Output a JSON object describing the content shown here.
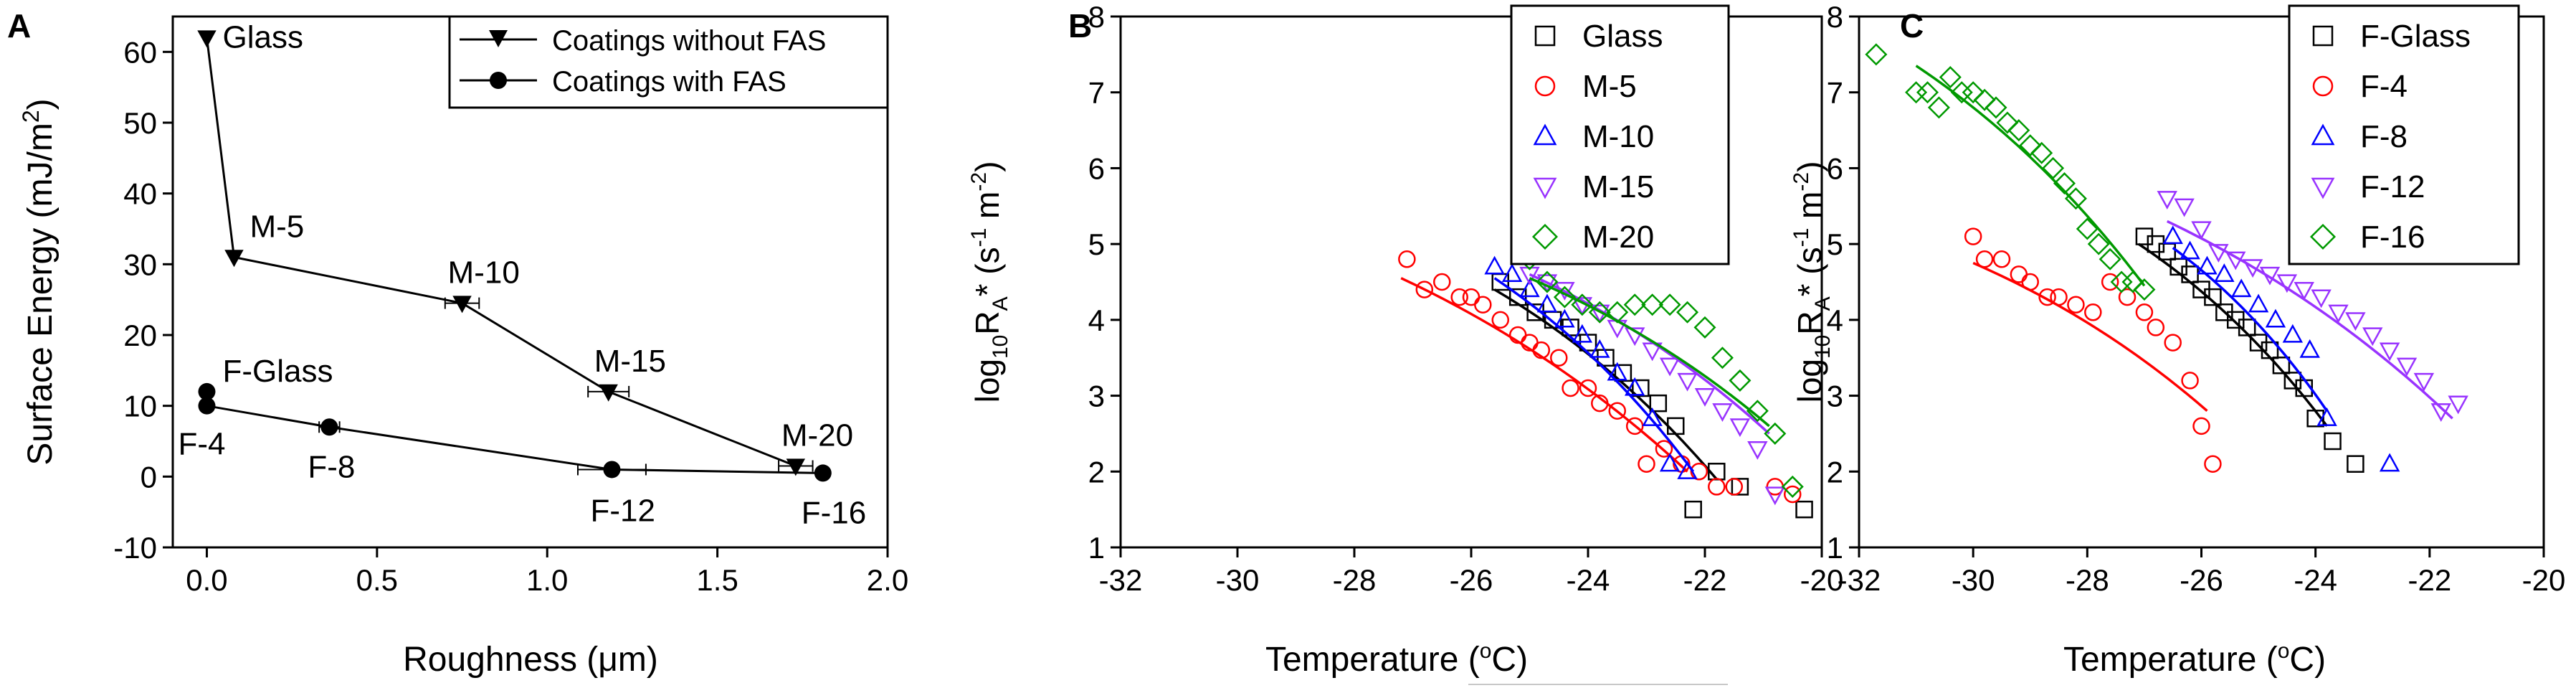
{
  "figure": {
    "panels": [
      {
        "label": "A"
      },
      {
        "label": "B"
      },
      {
        "label": "C"
      }
    ]
  },
  "chart_data": [
    {
      "panel": "A",
      "type": "line",
      "title": "",
      "xlabel": "Roughness (μm)",
      "ylabel": "Surface Energy (mJ/m²)",
      "xlim": [
        -0.1,
        2.0
      ],
      "ylim": [
        -10,
        65
      ],
      "xticks": [
        0.0,
        0.5,
        1.0,
        1.5,
        2.0
      ],
      "xtick_labels": [
        "0.0",
        "0.5",
        "1.0",
        "1.5",
        "2.0"
      ],
      "yticks": [
        -10,
        0,
        10,
        20,
        30,
        40,
        50,
        60
      ],
      "ytick_labels": [
        "-10",
        "0",
        "10",
        "20",
        "30",
        "40",
        "50",
        "60"
      ],
      "legend_position": "top-right",
      "series": [
        {
          "name": "Coatings without FAS",
          "marker": "triangle-down",
          "color": "#000000",
          "x": [
            0.0,
            0.08,
            0.75,
            1.18,
            1.73
          ],
          "y": [
            62,
            31,
            24.5,
            12,
            1.5
          ],
          "xerr": [
            0.0,
            0.0,
            0.05,
            0.06,
            0.05
          ],
          "labels": [
            "Glass",
            "M-5",
            "M-10",
            "M-15",
            "M-20"
          ]
        },
        {
          "name": "Coatings with FAS",
          "marker": "circle",
          "color": "#000000",
          "x": [
            0.0,
            0.0,
            0.36,
            1.19,
            1.81
          ],
          "y": [
            12,
            10,
            7,
            1,
            0.5
          ],
          "xerr": [
            0.0,
            0.0,
            0.03,
            0.1,
            0.0
          ],
          "labels": [
            "F-Glass",
            "F-4",
            "F-8",
            "F-12",
            "F-16"
          ]
        }
      ]
    },
    {
      "panel": "B",
      "type": "scatter",
      "title": "",
      "xlabel": "Temperature (°C)",
      "ylabel": "log10 RA* (s-1 m-2)",
      "ylabel_main": "log",
      "ylabel_sub1": "10",
      "ylabel_mid": "R",
      "ylabel_sub2": "A",
      "ylabel_tail": "* (s",
      "ylabel_exp1": "-1",
      "ylabel_m": " m",
      "ylabel_exp2": "-2",
      "ylabel_close": ")",
      "xlim": [
        -32,
        -20
      ],
      "ylim": [
        1,
        8
      ],
      "xticks": [
        -32,
        -30,
        -28,
        -26,
        -24,
        -22,
        -20
      ],
      "xtick_labels": [
        "-32",
        "-30",
        "-28",
        "-26",
        "-24",
        "-22",
        "-20"
      ],
      "yticks": [
        1,
        2,
        3,
        4,
        5,
        6,
        7,
        8
      ],
      "ytick_labels": [
        "1",
        "2",
        "3",
        "4",
        "5",
        "6",
        "7",
        "8"
      ],
      "legend_position": "top-right",
      "series": [
        {
          "name": "Glass",
          "marker": "square",
          "color": "#000000",
          "x": [
            -25.5,
            -25.2,
            -24.9,
            -24.6,
            -24.3,
            -24.0,
            -23.7,
            -23.4,
            -23.1,
            -22.8,
            -22.5,
            -22.2,
            -21.8,
            -21.4,
            -20.3
          ],
          "y": [
            4.5,
            4.3,
            4.1,
            4.0,
            3.9,
            3.7,
            3.5,
            3.3,
            3.1,
            2.9,
            2.6,
            1.5,
            2.0,
            1.8,
            1.5
          ],
          "fit_x": [
            -25.6,
            -21.8
          ],
          "fit_y": [
            4.4,
            1.9
          ]
        },
        {
          "name": "M-5",
          "marker": "circle",
          "color": "#ff0000",
          "x": [
            -27.1,
            -26.8,
            -26.5,
            -26.2,
            -26.0,
            -25.8,
            -25.5,
            -25.2,
            -25.0,
            -24.8,
            -24.5,
            -24.3,
            -24.0,
            -23.8,
            -23.5,
            -23.2,
            -23.0,
            -22.7,
            -22.4,
            -22.1,
            -21.8,
            -21.5,
            -20.8,
            -20.5
          ],
          "y": [
            4.8,
            4.4,
            4.5,
            4.3,
            4.3,
            4.2,
            4.0,
            3.8,
            3.7,
            3.6,
            3.5,
            3.1,
            3.1,
            2.9,
            2.8,
            2.6,
            2.1,
            2.3,
            2.1,
            2.0,
            1.8,
            1.8,
            1.8,
            1.7
          ],
          "fit_x": [
            -27.2,
            -22.3
          ],
          "fit_y": [
            4.55,
            2.0
          ]
        },
        {
          "name": "M-10",
          "marker": "triangle-up",
          "color": "#0000ff",
          "x": [
            -25.6,
            -25.3,
            -25.0,
            -24.7,
            -24.4,
            -24.1,
            -23.8,
            -23.5,
            -23.2,
            -22.9,
            -22.6,
            -22.3
          ],
          "y": [
            4.7,
            4.6,
            4.4,
            4.2,
            4.0,
            3.8,
            3.6,
            3.3,
            3.1,
            2.7,
            2.1,
            2.0
          ],
          "fit_x": [
            -25.6,
            -22.2
          ],
          "fit_y": [
            4.55,
            2.0
          ]
        },
        {
          "name": "M-15",
          "marker": "triangle-down",
          "color": "#9933ff",
          "x": [
            -25.0,
            -24.7,
            -24.4,
            -24.1,
            -23.8,
            -23.5,
            -23.2,
            -22.9,
            -22.6,
            -22.3,
            -22.0,
            -21.7,
            -21.4,
            -21.1,
            -20.8
          ],
          "y": [
            4.6,
            4.5,
            4.4,
            4.2,
            4.1,
            3.9,
            3.8,
            3.6,
            3.4,
            3.2,
            3.0,
            2.8,
            2.6,
            2.3,
            1.7
          ],
          "fit_x": [
            -25.0,
            -20.9
          ],
          "fit_y": [
            4.6,
            2.5
          ]
        },
        {
          "name": "M-20",
          "marker": "diamond",
          "color": "#009900",
          "x": [
            -25.0,
            -24.7,
            -24.4,
            -24.1,
            -23.8,
            -23.5,
            -23.2,
            -22.9,
            -22.6,
            -22.3,
            -22.0,
            -21.7,
            -21.4,
            -21.1,
            -20.8,
            -20.5
          ],
          "y": [
            4.8,
            4.5,
            4.3,
            4.2,
            4.1,
            4.1,
            4.2,
            4.2,
            4.2,
            4.1,
            3.9,
            3.5,
            3.2,
            2.8,
            2.5,
            1.8
          ],
          "fit_x": [
            -25.0,
            -20.9
          ],
          "fit_y": [
            4.55,
            2.6
          ]
        }
      ]
    },
    {
      "panel": "C",
      "type": "scatter",
      "title": "",
      "xlabel": "Temperature (°C)",
      "ylabel": "log10 RA* (s-1 m-2)",
      "ylabel_main": "log",
      "ylabel_sub1": "10",
      "ylabel_mid": "R",
      "ylabel_sub2": "A",
      "ylabel_tail": "* (s",
      "ylabel_exp1": "-1",
      "ylabel_m": " m",
      "ylabel_exp2": "-2",
      "ylabel_close": ")",
      "xlim": [
        -32,
        -20
      ],
      "ylim": [
        1,
        8
      ],
      "xticks": [
        -32,
        -30,
        -28,
        -26,
        -24,
        -22,
        -20
      ],
      "xtick_labels": [
        "-32",
        "-30",
        "-28",
        "-26",
        "-24",
        "-22",
        "-20"
      ],
      "yticks": [
        1,
        2,
        3,
        4,
        5,
        6,
        7,
        8
      ],
      "ytick_labels": [
        "1",
        "2",
        "3",
        "4",
        "5",
        "6",
        "7",
        "8"
      ],
      "legend_position": "top-right",
      "series": [
        {
          "name": "F-Glass",
          "marker": "square",
          "color": "#000000",
          "x": [
            -27.0,
            -26.8,
            -26.6,
            -26.4,
            -26.2,
            -26.0,
            -25.8,
            -25.6,
            -25.4,
            -25.2,
            -25.0,
            -24.8,
            -24.6,
            -24.4,
            -24.2,
            -24.0,
            -23.7,
            -23.3
          ],
          "y": [
            5.1,
            5.0,
            4.9,
            4.7,
            4.6,
            4.4,
            4.3,
            4.1,
            4.0,
            3.9,
            3.7,
            3.6,
            3.4,
            3.2,
            3.1,
            2.7,
            2.4,
            2.1
          ],
          "fit_x": [
            -27.1,
            -23.8
          ],
          "fit_y": [
            5.0,
            2.6
          ]
        },
        {
          "name": "F-4",
          "marker": "circle",
          "color": "#ff0000",
          "x": [
            -30.0,
            -29.8,
            -29.5,
            -29.2,
            -29.0,
            -28.7,
            -28.5,
            -28.2,
            -27.9,
            -27.6,
            -27.3,
            -27.0,
            -26.8,
            -26.5,
            -26.2,
            -26.0,
            -25.8
          ],
          "y": [
            5.1,
            4.8,
            4.8,
            4.6,
            4.5,
            4.3,
            4.3,
            4.2,
            4.1,
            4.5,
            4.3,
            4.1,
            3.9,
            3.7,
            3.2,
            2.6,
            2.1
          ],
          "fit_x": [
            -30.0,
            -25.9
          ],
          "fit_y": [
            4.75,
            2.8
          ]
        },
        {
          "name": "F-8",
          "marker": "triangle-up",
          "color": "#0000ff",
          "x": [
            -26.5,
            -26.2,
            -25.9,
            -25.6,
            -25.3,
            -25.0,
            -24.7,
            -24.4,
            -24.1,
            -23.8,
            -22.7
          ],
          "y": [
            5.1,
            4.9,
            4.7,
            4.6,
            4.4,
            4.2,
            4.0,
            3.8,
            3.6,
            2.7,
            2.1
          ],
          "fit_x": [
            -26.5,
            -23.8
          ],
          "fit_y": [
            4.95,
            2.8
          ]
        },
        {
          "name": "F-12",
          "marker": "triangle-down",
          "color": "#9933ff",
          "x": [
            -26.6,
            -26.3,
            -26.0,
            -25.7,
            -25.4,
            -25.1,
            -24.8,
            -24.5,
            -24.2,
            -23.9,
            -23.6,
            -23.3,
            -23.0,
            -22.7,
            -22.4,
            -22.1,
            -21.8,
            -21.5
          ],
          "y": [
            5.6,
            5.5,
            5.2,
            4.9,
            4.8,
            4.7,
            4.6,
            4.5,
            4.4,
            4.3,
            4.1,
            4.0,
            3.8,
            3.6,
            3.4,
            3.2,
            2.8,
            2.9
          ],
          "fit_x": [
            -26.6,
            -21.6
          ],
          "fit_y": [
            5.3,
            2.7
          ]
        },
        {
          "name": "F-16",
          "marker": "diamond",
          "color": "#009900",
          "x": [
            -31.7,
            -31.0,
            -30.8,
            -30.6,
            -30.4,
            -30.2,
            -30.0,
            -29.8,
            -29.6,
            -29.4,
            -29.2,
            -29.0,
            -28.8,
            -28.6,
            -28.4,
            -28.2,
            -28.0,
            -27.8,
            -27.6,
            -27.4,
            -27.2,
            -27.0
          ],
          "y": [
            7.5,
            7.0,
            7.0,
            6.8,
            7.2,
            7.0,
            7.0,
            6.9,
            6.8,
            6.6,
            6.5,
            6.3,
            6.2,
            6.0,
            5.8,
            5.6,
            5.2,
            5.0,
            4.8,
            4.5,
            4.5,
            4.4
          ],
          "fit_x": [
            -31.0,
            -27.0
          ],
          "fit_y": [
            7.35,
            4.45
          ]
        }
      ]
    }
  ]
}
